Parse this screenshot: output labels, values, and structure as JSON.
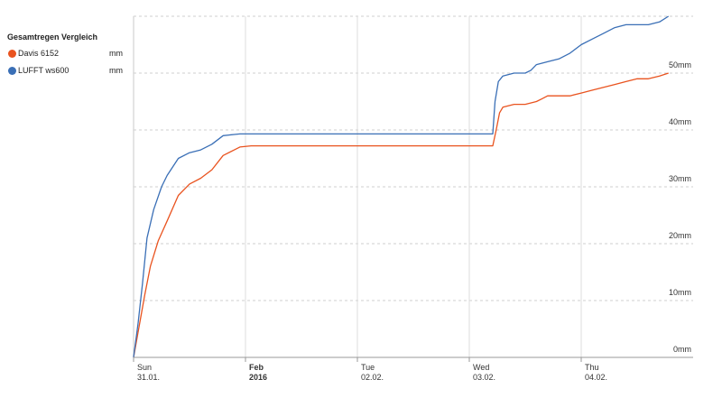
{
  "chart_data": {
    "type": "line",
    "title": "Gesamtregen Vergleich",
    "xlabel": "",
    "ylabel": "",
    "ylim": [
      0,
      60
    ],
    "y_ticks": [
      "0mm",
      "10mm",
      "20mm",
      "30mm",
      "40mm",
      "50mm"
    ],
    "y_tick_values": [
      0,
      10,
      20,
      30,
      40,
      50
    ],
    "x_range": [
      0,
      5
    ],
    "x_tick_values": [
      0,
      1,
      2,
      3,
      4
    ],
    "x_ticks": [
      {
        "day": "Sun",
        "date": "31.01."
      },
      {
        "day": "Feb",
        "date": "2016"
      },
      {
        "day": "Tue",
        "date": "02.02."
      },
      {
        "day": "Wed",
        "date": "03.02."
      },
      {
        "day": "Thu",
        "date": "04.02."
      }
    ],
    "grid": true,
    "legend_position": "left",
    "series": [
      {
        "name": "Davis 6152",
        "unit": "mm",
        "color": "#e9531f",
        "x": [
          0,
          0.05,
          0.1,
          0.15,
          0.22,
          0.3,
          0.4,
          0.5,
          0.6,
          0.7,
          0.8,
          0.9,
          0.95,
          1.05,
          1.5,
          2.0,
          2.5,
          3.0,
          3.21,
          3.24,
          3.27,
          3.3,
          3.4,
          3.5,
          3.6,
          3.65,
          3.7,
          3.8,
          3.9,
          4.0,
          4.1,
          4.2,
          4.3,
          4.4,
          4.5,
          4.6,
          4.7,
          4.78
        ],
        "y": [
          0,
          5.5,
          11,
          16,
          20.5,
          24,
          28.5,
          30.5,
          31.5,
          33,
          35.5,
          36.5,
          37,
          37.2,
          37.2,
          37.2,
          37.2,
          37.2,
          37.2,
          40,
          43,
          44,
          44.5,
          44.5,
          45,
          45.5,
          46,
          46,
          46,
          46.5,
          47,
          47.5,
          48,
          48.5,
          49,
          49,
          49.5,
          50
        ]
      },
      {
        "name": "LUFFT ws600",
        "unit": "mm",
        "color": "#3a6fb6",
        "x": [
          0,
          0.04,
          0.08,
          0.12,
          0.18,
          0.25,
          0.3,
          0.4,
          0.5,
          0.6,
          0.7,
          0.8,
          0.9,
          0.95,
          1.05,
          1.5,
          2.0,
          2.5,
          3.0,
          3.21,
          3.23,
          3.26,
          3.3,
          3.4,
          3.5,
          3.55,
          3.6,
          3.7,
          3.8,
          3.9,
          4.0,
          4.1,
          4.2,
          4.3,
          4.4,
          4.5,
          4.6,
          4.7,
          4.78
        ],
        "y": [
          0,
          6,
          13,
          21,
          26,
          30,
          32,
          35,
          36,
          36.5,
          37.5,
          39,
          39.2,
          39.3,
          39.3,
          39.3,
          39.3,
          39.3,
          39.3,
          39.3,
          45,
          48.5,
          49.5,
          50,
          50,
          50.5,
          51.5,
          52,
          52.5,
          53.5,
          55,
          56,
          57,
          58,
          58.5,
          58.5,
          58.5,
          59,
          60
        ]
      }
    ]
  }
}
